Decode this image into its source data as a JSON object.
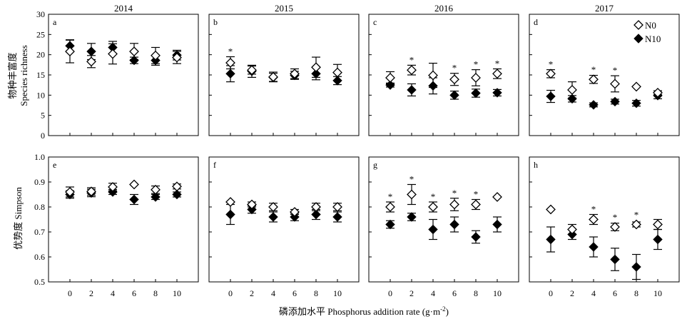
{
  "figure": {
    "xlabel": "磷添加水平 Phosphorus addition rate (g·m",
    "xlabel_sup": "-2",
    "xlabel_close": ")",
    "ylabel_top_cn": "物种丰富度",
    "ylabel_top_en": "Species richness",
    "ylabel_bottom": "优势度 Simpson",
    "legend": {
      "n0": "N0",
      "n10": "N10",
      "placement": "inside panel d, top-right"
    },
    "sig_marker": "*"
  },
  "chart_data": [
    {
      "type": "scatter",
      "panel": "a",
      "year": "2014",
      "x": [
        0,
        2,
        4,
        6,
        8,
        10
      ],
      "ylim": [
        0,
        30
      ],
      "yticks": [
        0,
        5,
        10,
        15,
        20,
        25,
        30
      ],
      "series": [
        {
          "name": "N0",
          "marker": "open-diamond",
          "values": [
            20.8,
            18.3,
            20.2,
            20.8,
            19.8,
            19.3
          ],
          "err": [
            2.8,
            1.5,
            2.5,
            2.0,
            2.0,
            1.5
          ]
        },
        {
          "name": "N10",
          "marker": "filled-diamond",
          "values": [
            22.2,
            20.8,
            21.8,
            18.6,
            18.6,
            19.9
          ],
          "err": [
            1.5,
            2.0,
            1.5,
            0.8,
            1.2,
            1.2
          ]
        }
      ],
      "significant": []
    },
    {
      "type": "scatter",
      "panel": "b",
      "year": "2015",
      "x": [
        0,
        2,
        4,
        6,
        8,
        10
      ],
      "ylim": [
        0,
        30
      ],
      "yticks": [
        0,
        5,
        10,
        15,
        20,
        25,
        30
      ],
      "series": [
        {
          "name": "N0",
          "marker": "open-diamond",
          "values": [
            18.0,
            16.2,
            14.5,
            15.3,
            16.9,
            15.6
          ],
          "err": [
            1.5,
            1.0,
            1.2,
            1.2,
            2.5,
            2.0
          ]
        },
        {
          "name": "N10",
          "marker": "filled-diamond",
          "values": [
            15.3,
            15.9,
            14.4,
            14.9,
            15.3,
            13.6
          ],
          "err": [
            2.0,
            1.5,
            1.0,
            1.0,
            1.5,
            1.0
          ]
        }
      ],
      "significant": [
        0
      ]
    },
    {
      "type": "scatter",
      "panel": "c",
      "year": "2016",
      "x": [
        0,
        2,
        4,
        6,
        8,
        10
      ],
      "ylim": [
        0,
        30
      ],
      "yticks": [
        0,
        5,
        10,
        15,
        20,
        25,
        30
      ],
      "series": [
        {
          "name": "N0",
          "marker": "open-diamond",
          "values": [
            14.3,
            16.2,
            14.9,
            13.9,
            14.3,
            15.3
          ],
          "err": [
            1.5,
            1.2,
            3.0,
            1.5,
            2.0,
            1.2
          ]
        },
        {
          "name": "N10",
          "marker": "filled-diamond",
          "values": [
            12.5,
            11.3,
            12.3,
            10.0,
            10.5,
            10.6
          ],
          "err": [
            0.5,
            1.5,
            2.0,
            1.0,
            1.0,
            0.8
          ]
        }
      ],
      "significant": [
        1,
        3,
        4,
        5
      ]
    },
    {
      "type": "scatter",
      "panel": "d",
      "year": "2017",
      "x": [
        0,
        2,
        4,
        6,
        8,
        10
      ],
      "ylim": [
        0,
        30
      ],
      "yticks": [
        0,
        5,
        10,
        15,
        20,
        25,
        30
      ],
      "series": [
        {
          "name": "N0",
          "marker": "open-diamond",
          "values": [
            15.3,
            11.3,
            13.9,
            12.8,
            12.1,
            10.6
          ],
          "err": [
            1.0,
            2.0,
            1.0,
            2.0,
            0.0,
            0.5
          ]
        },
        {
          "name": "N10",
          "marker": "filled-diamond",
          "values": [
            9.7,
            9.1,
            7.6,
            8.4,
            8.0,
            9.9
          ],
          "err": [
            1.5,
            0.8,
            0.5,
            0.6,
            0.7,
            0.8
          ]
        }
      ],
      "significant": [
        0,
        2,
        3
      ]
    },
    {
      "type": "scatter",
      "panel": "e",
      "year": "",
      "x": [
        0,
        2,
        4,
        6,
        8,
        10
      ],
      "ylim": [
        0.5,
        1.0
      ],
      "yticks": [
        0.5,
        0.6,
        0.7,
        0.8,
        0.9,
        1.0
      ],
      "series": [
        {
          "name": "N0",
          "marker": "open-diamond",
          "values": [
            0.86,
            0.862,
            0.88,
            0.89,
            0.869,
            0.882
          ],
          "err": [
            0.02,
            0.015,
            0.015,
            0.0,
            0.015,
            0.01
          ]
        },
        {
          "name": "N10",
          "marker": "filled-diamond",
          "values": [
            0.85,
            0.856,
            0.86,
            0.83,
            0.84,
            0.85
          ],
          "err": [
            0.015,
            0.015,
            0.01,
            0.02,
            0.01,
            0.01
          ]
        }
      ],
      "significant": []
    },
    {
      "type": "scatter",
      "panel": "f",
      "year": "",
      "x": [
        0,
        2,
        4,
        6,
        8,
        10
      ],
      "ylim": [
        0.5,
        1.0
      ],
      "yticks": [
        0.5,
        0.6,
        0.7,
        0.8,
        0.9,
        1.0
      ],
      "series": [
        {
          "name": "N0",
          "marker": "open-diamond",
          "values": [
            0.82,
            0.81,
            0.8,
            0.78,
            0.8,
            0.8
          ],
          "err": [
            0.0,
            0.01,
            0.015,
            0.01,
            0.015,
            0.015
          ]
        },
        {
          "name": "N10",
          "marker": "filled-diamond",
          "values": [
            0.77,
            0.79,
            0.76,
            0.76,
            0.77,
            0.76
          ],
          "err": [
            0.04,
            0.015,
            0.02,
            0.015,
            0.02,
            0.02
          ]
        }
      ],
      "significant": []
    },
    {
      "type": "scatter",
      "panel": "g",
      "year": "",
      "x": [
        0,
        2,
        4,
        6,
        8,
        10
      ],
      "ylim": [
        0.5,
        1.0
      ],
      "yticks": [
        0.5,
        0.6,
        0.7,
        0.8,
        0.9,
        1.0
      ],
      "series": [
        {
          "name": "N0",
          "marker": "open-diamond",
          "values": [
            0.8,
            0.85,
            0.8,
            0.81,
            0.81,
            0.84
          ],
          "err": [
            0.02,
            0.04,
            0.02,
            0.025,
            0.02,
            0.0
          ]
        },
        {
          "name": "N10",
          "marker": "filled-diamond",
          "values": [
            0.73,
            0.76,
            0.71,
            0.73,
            0.68,
            0.73
          ],
          "err": [
            0.015,
            0.015,
            0.04,
            0.03,
            0.025,
            0.03
          ]
        }
      ],
      "significant": [
        0,
        1,
        2,
        3,
        4
      ]
    },
    {
      "type": "scatter",
      "panel": "h",
      "year": "",
      "x": [
        0,
        2,
        4,
        6,
        8,
        10
      ],
      "ylim": [
        0.5,
        1.0
      ],
      "yticks": [
        0.5,
        0.6,
        0.7,
        0.8,
        0.9,
        1.0
      ],
      "series": [
        {
          "name": "N0",
          "marker": "open-diamond",
          "values": [
            0.79,
            0.71,
            0.75,
            0.72,
            0.73,
            0.73
          ],
          "err": [
            0.0,
            0.02,
            0.02,
            0.015,
            0.01,
            0.02
          ]
        },
        {
          "name": "N10",
          "marker": "filled-diamond",
          "values": [
            0.67,
            0.69,
            0.64,
            0.59,
            0.56,
            0.67
          ],
          "err": [
            0.05,
            0.02,
            0.04,
            0.045,
            0.05,
            0.04
          ]
        }
      ],
      "significant": [
        2,
        3,
        4
      ]
    }
  ]
}
